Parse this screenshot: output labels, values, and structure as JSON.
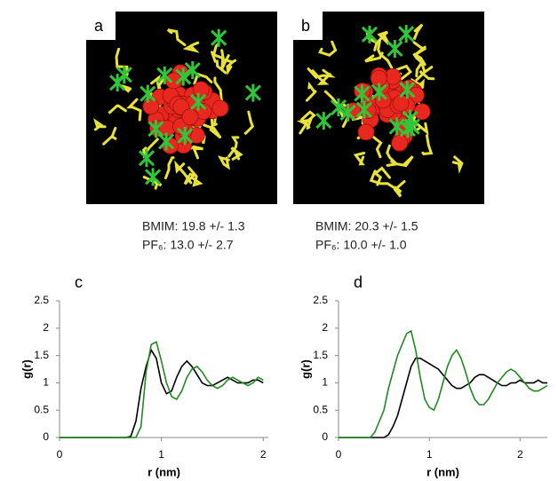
{
  "panels": [
    {
      "label": "a",
      "bmim": "BMIM: 19.8 +/- 1.3",
      "pf6": "PF₆: 13.0 +/- 2.7"
    },
    {
      "label": "b",
      "bmim": "BMIM: 20.3 +/- 1.5",
      "pf6": "PF₆: 10.0 +/- 1.0"
    }
  ],
  "chart_data": [
    {
      "type": "line",
      "panel_label": "c",
      "x_label": "r (nm)",
      "y_label": "g(r)",
      "xlim": [
        0,
        2.05
      ],
      "ylim": [
        0,
        2.5
      ],
      "xticks": [
        0,
        1,
        2
      ],
      "yticks": [
        0,
        0.5,
        1,
        1.5,
        2,
        2.5
      ],
      "x": [
        0,
        0.05,
        0.1,
        0.15,
        0.2,
        0.25,
        0.3,
        0.35,
        0.4,
        0.45,
        0.5,
        0.55,
        0.6,
        0.65,
        0.7,
        0.75,
        0.8,
        0.85,
        0.9,
        0.95,
        1.0,
        1.05,
        1.1,
        1.15,
        1.2,
        1.25,
        1.3,
        1.35,
        1.4,
        1.45,
        1.5,
        1.55,
        1.6,
        1.65,
        1.7,
        1.75,
        1.8,
        1.85,
        1.9,
        1.95,
        2.0
      ],
      "series": [
        {
          "color": "#000000",
          "values": [
            0,
            0,
            0,
            0,
            0,
            0,
            0,
            0,
            0,
            0,
            0,
            0,
            0,
            0,
            0.02,
            0.3,
            0.9,
            1.3,
            1.6,
            1.45,
            1.0,
            0.8,
            0.85,
            1.1,
            1.3,
            1.4,
            1.3,
            1.15,
            1.0,
            0.95,
            0.95,
            1.0,
            1.05,
            1.1,
            1.05,
            1.0,
            1.0,
            1.0,
            1.05,
            1.05,
            1.0
          ]
        },
        {
          "color": "#1f8a1f",
          "values": [
            0,
            0,
            0,
            0,
            0,
            0,
            0,
            0,
            0,
            0,
            0,
            0,
            0,
            0,
            0,
            0,
            0.2,
            1.2,
            1.7,
            1.75,
            1.4,
            1.0,
            0.75,
            0.7,
            0.85,
            1.1,
            1.25,
            1.3,
            1.2,
            1.05,
            0.95,
            0.9,
            0.95,
            1.05,
            1.1,
            1.05,
            1.0,
            0.95,
            1.0,
            1.1,
            1.05
          ]
        }
      ]
    },
    {
      "type": "line",
      "panel_label": "d",
      "x_label": "r (nm)",
      "y_label": "g(r)",
      "xlim": [
        0,
        2.3
      ],
      "ylim": [
        0,
        2.5
      ],
      "xticks": [
        0,
        1,
        2
      ],
      "yticks": [
        0,
        0.5,
        1,
        1.5,
        2,
        2.5
      ],
      "x": [
        0,
        0.05,
        0.1,
        0.15,
        0.2,
        0.25,
        0.3,
        0.35,
        0.4,
        0.45,
        0.5,
        0.55,
        0.6,
        0.65,
        0.7,
        0.75,
        0.8,
        0.85,
        0.9,
        0.95,
        1.0,
        1.05,
        1.1,
        1.15,
        1.2,
        1.25,
        1.3,
        1.35,
        1.4,
        1.45,
        1.5,
        1.55,
        1.6,
        1.65,
        1.7,
        1.75,
        1.8,
        1.85,
        1.9,
        1.95,
        2.0,
        2.05,
        2.1,
        2.15,
        2.2,
        2.25,
        2.3
      ],
      "series": [
        {
          "color": "#000000",
          "values": [
            0,
            0,
            0,
            0,
            0,
            0,
            0,
            0,
            0,
            0,
            0,
            0.05,
            0.2,
            0.4,
            0.7,
            1.0,
            1.3,
            1.45,
            1.45,
            1.4,
            1.35,
            1.3,
            1.25,
            1.15,
            1.05,
            0.95,
            0.9,
            0.9,
            0.95,
            1.0,
            1.1,
            1.15,
            1.15,
            1.1,
            1.05,
            1.0,
            0.95,
            0.95,
            1.0,
            1.0,
            1.05,
            1.0,
            1.0,
            1.0,
            1.05,
            1.0,
            1.0
          ]
        },
        {
          "color": "#1f8a1f",
          "values": [
            0,
            0,
            0,
            0,
            0,
            0,
            0,
            0,
            0.1,
            0.3,
            0.5,
            0.9,
            1.2,
            1.5,
            1.7,
            1.9,
            1.95,
            1.6,
            1.1,
            0.7,
            0.55,
            0.5,
            0.7,
            1.0,
            1.3,
            1.5,
            1.6,
            1.45,
            1.2,
            0.9,
            0.7,
            0.6,
            0.6,
            0.7,
            0.85,
            1.0,
            1.1,
            1.2,
            1.25,
            1.2,
            1.1,
            1.0,
            0.9,
            0.85,
            0.85,
            0.9,
            0.95
          ]
        }
      ]
    }
  ]
}
